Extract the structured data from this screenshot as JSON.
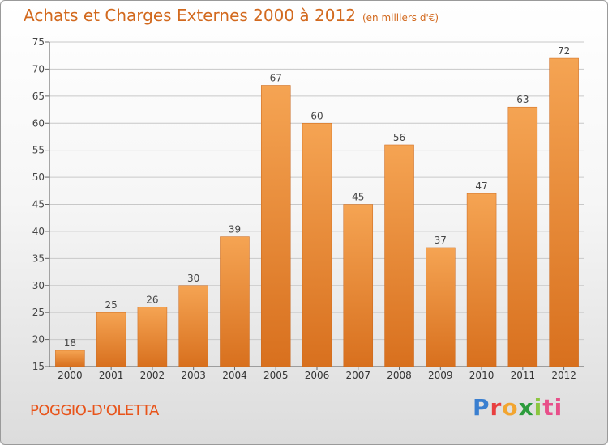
{
  "title": "Achats et Charges Externes 2000 à 2012",
  "unit": "(en milliers d'€)",
  "commune": "POGGIO-D'OLETTA",
  "logo": "Proxiti",
  "colors": {
    "bar_top": "#f5a453",
    "bar_bottom": "#d8701e",
    "title": "#d2691e",
    "commune": "#e8541a",
    "grid": "#c8c8c8"
  },
  "chart_data": {
    "type": "bar",
    "title": "Achats et Charges Externes 2000 à 2012",
    "subtitle": "(en milliers d'€)",
    "xlabel": "",
    "ylabel": "",
    "categories": [
      "2000",
      "2001",
      "2002",
      "2003",
      "2004",
      "2005",
      "2006",
      "2007",
      "2008",
      "2009",
      "2010",
      "2011",
      "2012"
    ],
    "values": [
      18,
      25,
      26,
      30,
      39,
      67,
      60,
      45,
      56,
      37,
      47,
      63,
      72
    ],
    "ylim": [
      15,
      75
    ],
    "yticks": [
      15,
      20,
      25,
      30,
      35,
      40,
      45,
      50,
      55,
      60,
      65,
      70,
      75
    ],
    "grid": true,
    "data_labels": true
  }
}
